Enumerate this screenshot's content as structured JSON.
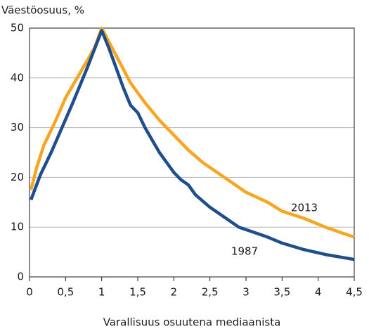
{
  "chart_data": {
    "type": "line",
    "y_label": "Väestöosuus, %",
    "x_label": "Varallisuus osuutena mediaanista",
    "xlim": [
      0,
      4.5
    ],
    "ylim": [
      0,
      50
    ],
    "xticks": [
      0,
      {
        "value": 0.5,
        "label": "0,5"
      },
      1,
      {
        "value": 1.5,
        "label": "1,5"
      },
      2,
      {
        "value": 2.5,
        "label": "2,5"
      },
      3,
      {
        "value": 3.5,
        "label": "3,5"
      },
      4,
      {
        "value": 4.5,
        "label": "4,5"
      }
    ],
    "yticks": [
      0,
      10,
      20,
      30,
      40,
      50
    ],
    "grid": true,
    "series": [
      {
        "name": "2013",
        "color": "#f5a623",
        "x": [
          0.02,
          0.1,
          0.2,
          0.35,
          0.5,
          0.7,
          0.9,
          1.0,
          1.2,
          1.4,
          1.6,
          1.8,
          2.0,
          2.2,
          2.4,
          2.6,
          2.8,
          3.0,
          3.3,
          3.5,
          3.8,
          4.1,
          4.5
        ],
        "values": [
          17.5,
          22,
          26.5,
          31,
          36,
          41,
          46,
          50,
          44.5,
          39,
          35,
          31.5,
          28.5,
          25.5,
          23,
          21,
          19,
          17,
          15,
          13.2,
          11.8,
          10,
          8
        ]
      },
      {
        "name": "1987",
        "color": "#1f4e8c",
        "x": [
          0.02,
          0.15,
          0.3,
          0.45,
          0.6,
          0.8,
          1.0,
          1.1,
          1.2,
          1.3,
          1.4,
          1.5,
          1.6,
          1.7,
          1.8,
          1.9,
          2.0,
          2.1,
          2.2,
          2.3,
          2.5,
          2.7,
          2.9,
          3.1,
          3.3,
          3.5,
          3.8,
          4.1,
          4.5
        ],
        "values": [
          15.5,
          20.5,
          25,
          30,
          35,
          42,
          49.5,
          46,
          42,
          38,
          34.5,
          33,
          30,
          27.5,
          25,
          23,
          21,
          19.5,
          18.5,
          16.5,
          14,
          12,
          10,
          9,
          8,
          6.8,
          5.5,
          4.5,
          3.5
        ]
      }
    ]
  }
}
